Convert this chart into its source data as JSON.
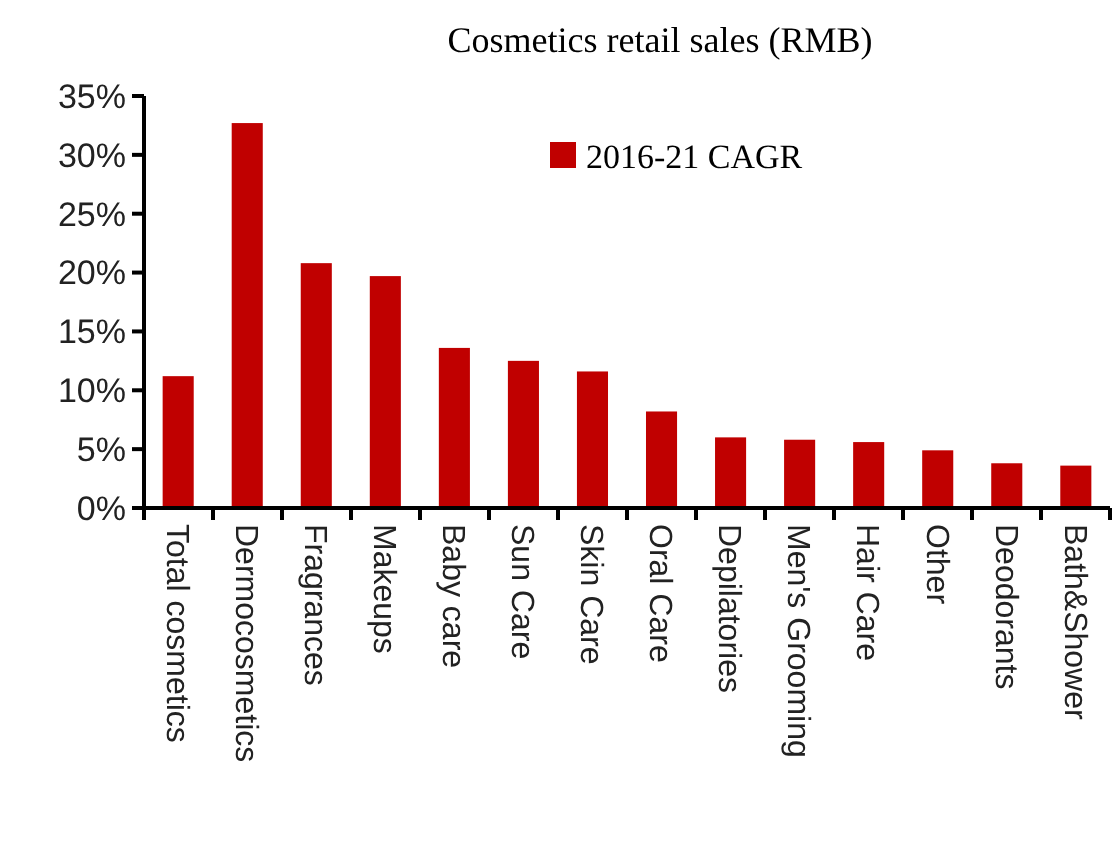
{
  "chart_data": {
    "type": "bar",
    "title": "Cosmetics retail sales (RMB)",
    "categories": [
      "Total cosmetics",
      "Dermocosmetics",
      "Fragrances",
      "Makeups",
      "Baby care",
      "Sun Care",
      "Skin Care",
      "Oral Care",
      "Depilatories",
      "Men's Grooming",
      "Hair Care",
      "Other",
      "Deodorants",
      "Bath&Shower"
    ],
    "series": [
      {
        "name": "2016-21 CAGR",
        "color": "#c00000",
        "values": [
          11.2,
          32.7,
          20.8,
          19.7,
          13.6,
          12.5,
          11.6,
          8.2,
          6.0,
          5.8,
          5.6,
          4.9,
          3.8,
          3.6
        ]
      }
    ],
    "ylim": [
      0,
      35
    ],
    "yticks": [
      {
        "value": 0,
        "label": "0%"
      },
      {
        "value": 5,
        "label": "5%"
      },
      {
        "value": 10,
        "label": "10%"
      },
      {
        "value": 15,
        "label": "15%"
      },
      {
        "value": 20,
        "label": "20%"
      },
      {
        "value": 25,
        "label": "25%"
      },
      {
        "value": 30,
        "label": "30%"
      },
      {
        "value": 35,
        "label": "35%"
      }
    ],
    "legend": "top right"
  }
}
